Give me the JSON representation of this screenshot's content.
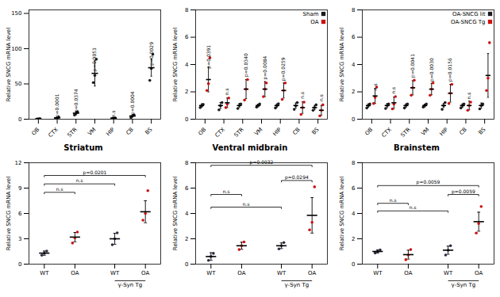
{
  "chart_data": [
    {
      "type": "strip",
      "ylabel": "Relative SNCG mRNA level",
      "categories": [
        "OB",
        "CTX",
        "STR",
        "VM",
        "HIP",
        "CB",
        "BS"
      ],
      "color": "#1a1a1a",
      "values": [
        0.5,
        2.0,
        8.5,
        65.0,
        1.5,
        4.5,
        73.0
      ],
      "errors": [
        0.3,
        0.8,
        2.5,
        18.0,
        0.5,
        1.5,
        12.0
      ],
      "dots": [
        [
          0.3,
          0.5,
          0.7
        ],
        [
          1.0,
          2.0,
          3.0
        ],
        [
          6.0,
          8.5,
          10.5
        ],
        [
          52.0,
          62.0,
          85.0
        ],
        [
          1.0,
          1.5,
          2.0
        ],
        [
          2.5,
          4.5,
          6.0
        ],
        [
          55.0,
          72.0,
          92.0
        ]
      ],
      "annotations": [
        {
          "text": "p=0.0001",
          "category": "CTX",
          "y": 2.5
        },
        {
          "text": "p=0.0374",
          "category": "STR",
          "y": 9.5
        },
        {
          "text": "p=0.0053",
          "category": "VM",
          "y": 68.0
        },
        {
          "text": "n.s",
          "category": "HIP",
          "y": 2.5
        },
        {
          "text": "p=0.0004",
          "category": "CB",
          "y": 6.0
        },
        {
          "text": "p=0.0029",
          "category": "BS",
          "y": 76.0
        }
      ],
      "ylim": [
        0,
        155
      ],
      "yticks": [
        0,
        50,
        100,
        150
      ],
      "grid": false
    },
    {
      "type": "strip",
      "ylabel": "Relative SNCG mRNA level",
      "categories": [
        "OB",
        "CTX",
        "STR",
        "VM",
        "HIP",
        "CB",
        "BS"
      ],
      "series": [
        {
          "name": "Sham",
          "color": "#1a1a1a",
          "values": [
            1.0,
            1.0,
            1.0,
            1.0,
            1.0,
            1.0,
            0.85
          ],
          "errors": [
            0.12,
            0.22,
            0.15,
            0.1,
            0.12,
            0.18,
            0.15
          ],
          "dots": [
            [
              0.85,
              0.97,
              1.08
            ],
            [
              0.68,
              0.98,
              1.22
            ],
            [
              0.78,
              1.0,
              1.12
            ],
            [
              0.88,
              1.0,
              1.12
            ],
            [
              0.82,
              1.0,
              1.13
            ],
            [
              0.72,
              0.98,
              1.22
            ],
            [
              0.65,
              0.85,
              1.05
            ]
          ]
        },
        {
          "name": "OA",
          "color": "#cc1111",
          "values": [
            2.9,
            1.2,
            2.2,
            2.2,
            2.1,
            0.85,
            0.65
          ],
          "errors": [
            0.9,
            0.35,
            0.7,
            0.55,
            0.55,
            0.42,
            0.35
          ],
          "dots": [
            [
              2.1,
              2.6,
              4.5
            ],
            [
              0.85,
              1.1,
              1.55
            ],
            [
              1.4,
              2.2,
              2.9
            ],
            [
              1.65,
              2.2,
              2.65
            ],
            [
              1.45,
              2.1,
              2.65
            ],
            [
              0.35,
              0.85,
              1.25
            ],
            [
              0.25,
              0.65,
              1.05
            ]
          ]
        }
      ],
      "annotations": [
        {
          "text": "p=0.0391",
          "category": "OB",
          "series": "OA",
          "y": 3.7
        },
        {
          "text": "n.s",
          "category": "CTX",
          "series": "OA",
          "y": 1.75
        },
        {
          "text": "p=0.0340",
          "category": "STR",
          "series": "OA",
          "y": 3.1
        },
        {
          "text": "p=0.0084",
          "category": "VM",
          "series": "OA",
          "y": 2.9
        },
        {
          "text": "p=0.0259",
          "category": "HIP",
          "series": "OA",
          "y": 2.8
        },
        {
          "text": "n.s",
          "category": "CB",
          "series": "OA",
          "y": 1.5
        },
        {
          "text": "n.s",
          "category": "BS",
          "series": "OA",
          "y": 1.3
        }
      ],
      "legend": "upper right",
      "ylim": [
        0,
        8
      ],
      "yticks": [
        0,
        2,
        4,
        6,
        8
      ],
      "grid": false
    },
    {
      "type": "strip",
      "ylabel": "Relative SNCG mRNA level",
      "categories": [
        "OB",
        "CTX",
        "STR",
        "VM",
        "HIP",
        "CB",
        "BS"
      ],
      "series": [
        {
          "name": "OA-SNCG lit",
          "color": "#1a1a1a",
          "values": [
            1.0,
            1.0,
            1.0,
            1.0,
            1.0,
            1.0,
            1.0
          ],
          "errors": [
            0.12,
            0.15,
            0.12,
            0.1,
            0.15,
            0.12,
            0.18
          ],
          "dots": [
            [
              0.82,
              1.0,
              1.12
            ],
            [
              0.78,
              1.0,
              1.12
            ],
            [
              0.82,
              1.0,
              1.12
            ],
            [
              0.88,
              1.0,
              1.12
            ],
            [
              0.72,
              1.0,
              1.22
            ],
            [
              0.82,
              1.0,
              1.12
            ],
            [
              0.75,
              1.0,
              1.12
            ]
          ]
        },
        {
          "name": "OA-SNCG Tg",
          "color": "#cc1111",
          "values": [
            1.7,
            1.2,
            2.3,
            2.2,
            1.9,
            1.0,
            3.2
          ],
          "errors": [
            0.55,
            0.42,
            0.52,
            0.42,
            0.65,
            0.32,
            1.6
          ],
          "dots": [
            [
              1.15,
              1.6,
              2.35
            ],
            [
              0.75,
              1.1,
              1.65
            ],
            [
              1.75,
              2.3,
              2.85
            ],
            [
              1.75,
              2.2,
              2.65
            ],
            [
              1.15,
              1.9,
              2.55
            ],
            [
              0.65,
              1.0,
              1.25
            ],
            [
              2.1,
              3.0,
              5.6
            ]
          ]
        }
      ],
      "annotations": [
        {
          "text": "n.s",
          "category": "OB",
          "series": "OA-SNCG Tg",
          "y": 2.1
        },
        {
          "text": "n.s",
          "category": "CTX",
          "series": "OA-SNCG Tg",
          "y": 1.85
        },
        {
          "text": "p=0.0041",
          "category": "STR",
          "series": "OA-SNCG Tg",
          "y": 3.05
        },
        {
          "text": "p=0.0030",
          "category": "VM",
          "series": "OA-SNCG Tg",
          "y": 2.75
        },
        {
          "text": "p=0.0156",
          "category": "HIP",
          "series": "OA-SNCG Tg",
          "y": 2.75
        },
        {
          "text": "n.s",
          "category": "CB",
          "series": "OA-SNCG Tg",
          "y": 1.45
        }
      ],
      "legend": "upper right",
      "ylim": [
        0,
        8
      ],
      "yticks": [
        0,
        2,
        4,
        6,
        8
      ],
      "grid": false
    },
    {
      "type": "strip",
      "title": "Striatum",
      "ylabel": "Relative SNCG mRNA level",
      "categories": [
        "WT",
        "OA",
        "WT",
        "OA"
      ],
      "colors": [
        "#2b2d42",
        "#cc1111",
        "#2b2d42",
        "#cc1111"
      ],
      "values": [
        1.3,
        3.2,
        3.0,
        6.2
      ],
      "errors": [
        0.25,
        0.55,
        0.65,
        1.3
      ],
      "dots": [
        [
          1.05,
          1.3,
          1.55
        ],
        [
          2.5,
          3.1,
          3.8
        ],
        [
          2.3,
          3.0,
          3.7
        ],
        [
          5.2,
          6.0,
          8.7
        ]
      ],
      "annotations": [
        {
          "text": "p=0.0201",
          "x1": 0,
          "x2": 3,
          "y": 10.5
        },
        {
          "text": "n.s",
          "x1": 0,
          "x2": 1,
          "y": 8.5
        },
        {
          "text": "n.s",
          "x1": 0,
          "x2": 2,
          "y": 9.5
        }
      ],
      "group_labels": [
        {
          "text": "γ-Syn Tg",
          "x1": 2,
          "x2": 3
        }
      ],
      "ylim": [
        0,
        12
      ],
      "yticks": [
        0,
        3,
        6,
        9,
        12
      ],
      "grid": false
    },
    {
      "type": "strip",
      "title": "Ventral midbrain",
      "ylabel": "Relative SNCG mRNA level",
      "categories": [
        "WT",
        "OA",
        "WT",
        "OA"
      ],
      "colors": [
        "#2b2d42",
        "#cc1111",
        "#2b2d42",
        "#cc1111"
      ],
      "values": [
        0.6,
        1.45,
        1.45,
        3.85
      ],
      "errors": [
        0.3,
        0.28,
        0.22,
        1.4
      ],
      "dots": [
        [
          0.3,
          0.6,
          0.85
        ],
        [
          1.15,
          1.45,
          1.75
        ],
        [
          1.2,
          1.45,
          1.7
        ],
        [
          2.7,
          3.3,
          6.1
        ]
      ],
      "annotations": [
        {
          "text": "p=0.0032",
          "x1": 0,
          "x2": 3,
          "y": 7.8
        },
        {
          "text": "n.s",
          "x1": 0,
          "x2": 1,
          "y": 5.5
        },
        {
          "text": "n.s",
          "x1": 0,
          "x2": 2,
          "y": 4.5
        },
        {
          "text": "p=0.0294",
          "x1": 2,
          "x2": 3,
          "y": 6.6
        }
      ],
      "group_labels": [
        {
          "text": "γ-Syn Tg",
          "x1": 2,
          "x2": 3
        }
      ],
      "ylim": [
        0,
        8
      ],
      "yticks": [
        0,
        2,
        4,
        6,
        8
      ],
      "grid": false
    },
    {
      "type": "strip",
      "title": "Brainstem",
      "ylabel": "Relative SNCG mRNA level",
      "categories": [
        "WT",
        "OA",
        "WT",
        "OA"
      ],
      "colors": [
        "#2b2d42",
        "#cc1111",
        "#2b2d42",
        "#cc1111"
      ],
      "values": [
        1.0,
        0.75,
        1.1,
        3.35
      ],
      "errors": [
        0.12,
        0.35,
        0.32,
        0.75
      ],
      "dots": [
        [
          0.88,
          1.0,
          1.12
        ],
        [
          0.35,
          0.72,
          1.15
        ],
        [
          0.72,
          1.1,
          1.45
        ],
        [
          2.45,
          3.2,
          4.55
        ]
      ],
      "annotations": [
        {
          "text": "p=0.0059",
          "x1": 0,
          "x2": 3,
          "y": 6.2
        },
        {
          "text": "n.s",
          "x1": 0,
          "x2": 1,
          "y": 4.8
        },
        {
          "text": "n.s",
          "x1": 0,
          "x2": 2,
          "y": 4.2
        },
        {
          "text": "p=0.0059",
          "x1": 2,
          "x2": 3,
          "y": 5.5
        }
      ],
      "group_labels": [
        {
          "text": "γ-Syn Tg",
          "x1": 2,
          "x2": 3
        }
      ],
      "ylim": [
        0,
        8
      ],
      "yticks": [
        0,
        2,
        4,
        6,
        8
      ],
      "grid": false
    }
  ]
}
